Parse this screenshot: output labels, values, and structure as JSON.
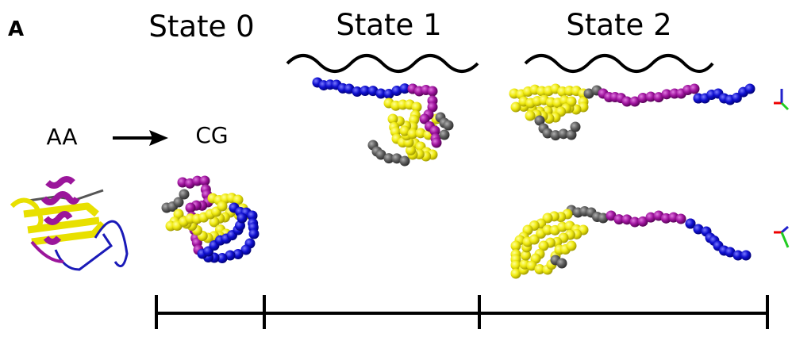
{
  "panel_label": "A",
  "states": [
    "State 0",
    "State 1",
    "State 2"
  ],
  "labels": {
    "source": "AA",
    "target": "CG"
  }
}
